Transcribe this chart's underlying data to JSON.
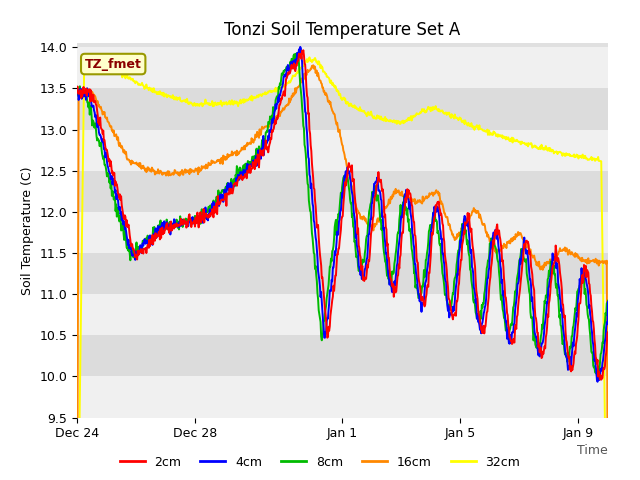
{
  "title": "Tonzi Soil Temperature Set A",
  "xlabel": "Time",
  "ylabel": "Soil Temperature (C)",
  "ylim": [
    9.5,
    14.05
  ],
  "label_annotation": "TZ_fmet",
  "colors": {
    "2cm": "#ff0000",
    "4cm": "#0000ff",
    "8cm": "#00bb00",
    "16cm": "#ff8800",
    "32cm": "#ffff00"
  },
  "legend_labels": [
    "2cm",
    "4cm",
    "8cm",
    "16cm",
    "32cm"
  ],
  "tick_dates": [
    "Dec 24",
    "Dec 28",
    "Jan 1",
    "Jan 5",
    "Jan 9"
  ],
  "tick_positions": [
    0,
    4,
    9,
    13,
    17
  ],
  "title_fontsize": 12,
  "axis_fontsize": 9,
  "legend_fontsize": 9,
  "band_colors": [
    "#f0f0f0",
    "#dcdcdc"
  ],
  "band_edges": [
    9.5,
    10.0,
    10.5,
    11.0,
    11.5,
    12.0,
    12.5,
    13.0,
    13.5,
    14.0
  ]
}
